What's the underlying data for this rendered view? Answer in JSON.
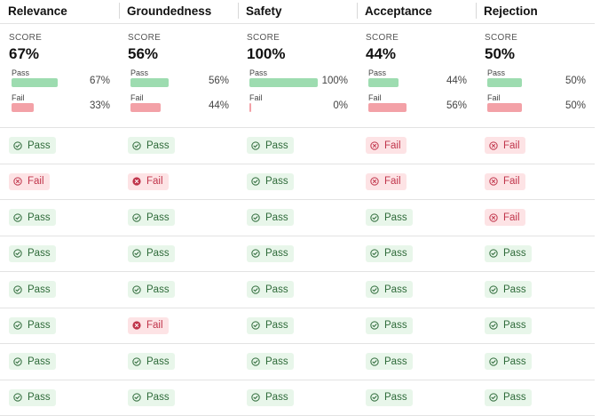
{
  "columns": [
    {
      "title": "Relevance",
      "score_label": "SCORE",
      "score": "67%",
      "pass_label": "Pass",
      "pass_pct": "67%",
      "pass_value": 0.67,
      "fail_label": "Fail",
      "fail_pct": "33%",
      "fail_value": 0.33
    },
    {
      "title": "Groundedness",
      "score_label": "SCORE",
      "score": "56%",
      "pass_label": "Pass",
      "pass_pct": "56%",
      "pass_value": 0.56,
      "fail_label": "Fail",
      "fail_pct": "44%",
      "fail_value": 0.44
    },
    {
      "title": "Safety",
      "score_label": "SCORE",
      "score": "100%",
      "pass_label": "Pass",
      "pass_pct": "100%",
      "pass_value": 1.0,
      "fail_label": "Fail",
      "fail_pct": "0%",
      "fail_value": 0.0
    },
    {
      "title": "Acceptance",
      "score_label": "SCORE",
      "score": "44%",
      "pass_label": "Pass",
      "pass_pct": "44%",
      "pass_value": 0.44,
      "fail_label": "Fail",
      "fail_pct": "56%",
      "fail_value": 0.56
    },
    {
      "title": "Rejection",
      "score_label": "SCORE",
      "score": "50%",
      "pass_label": "Pass",
      "pass_pct": "50%",
      "pass_value": 0.5,
      "fail_label": "Fail",
      "fail_pct": "50%",
      "fail_value": 0.5
    }
  ],
  "rows": [
    [
      "Pass",
      "Pass",
      "Pass",
      "Fail",
      "Fail"
    ],
    [
      "Fail",
      "Fail",
      "Pass",
      "Fail",
      "Fail"
    ],
    [
      "Pass",
      "Pass",
      "Pass",
      "Pass",
      "Fail"
    ],
    [
      "Pass",
      "Pass",
      "Pass",
      "Pass",
      "Pass"
    ],
    [
      "Pass",
      "Pass",
      "Pass",
      "Pass",
      "Pass"
    ],
    [
      "Pass",
      "Fail",
      "Pass",
      "Pass",
      "Pass"
    ],
    [
      "Pass",
      "Pass",
      "Pass",
      "Pass",
      "Pass"
    ],
    [
      "Pass",
      "Pass",
      "Pass",
      "Pass",
      "Pass"
    ]
  ],
  "colors": {
    "pass_bar": "#9ddcb0",
    "fail_bar": "#f3a1a7",
    "pass_text": "#2f6b3a",
    "fail_text": "#c0344a"
  },
  "icons": {
    "pass": "check-circle-icon",
    "fail": "x-circle-icon"
  }
}
